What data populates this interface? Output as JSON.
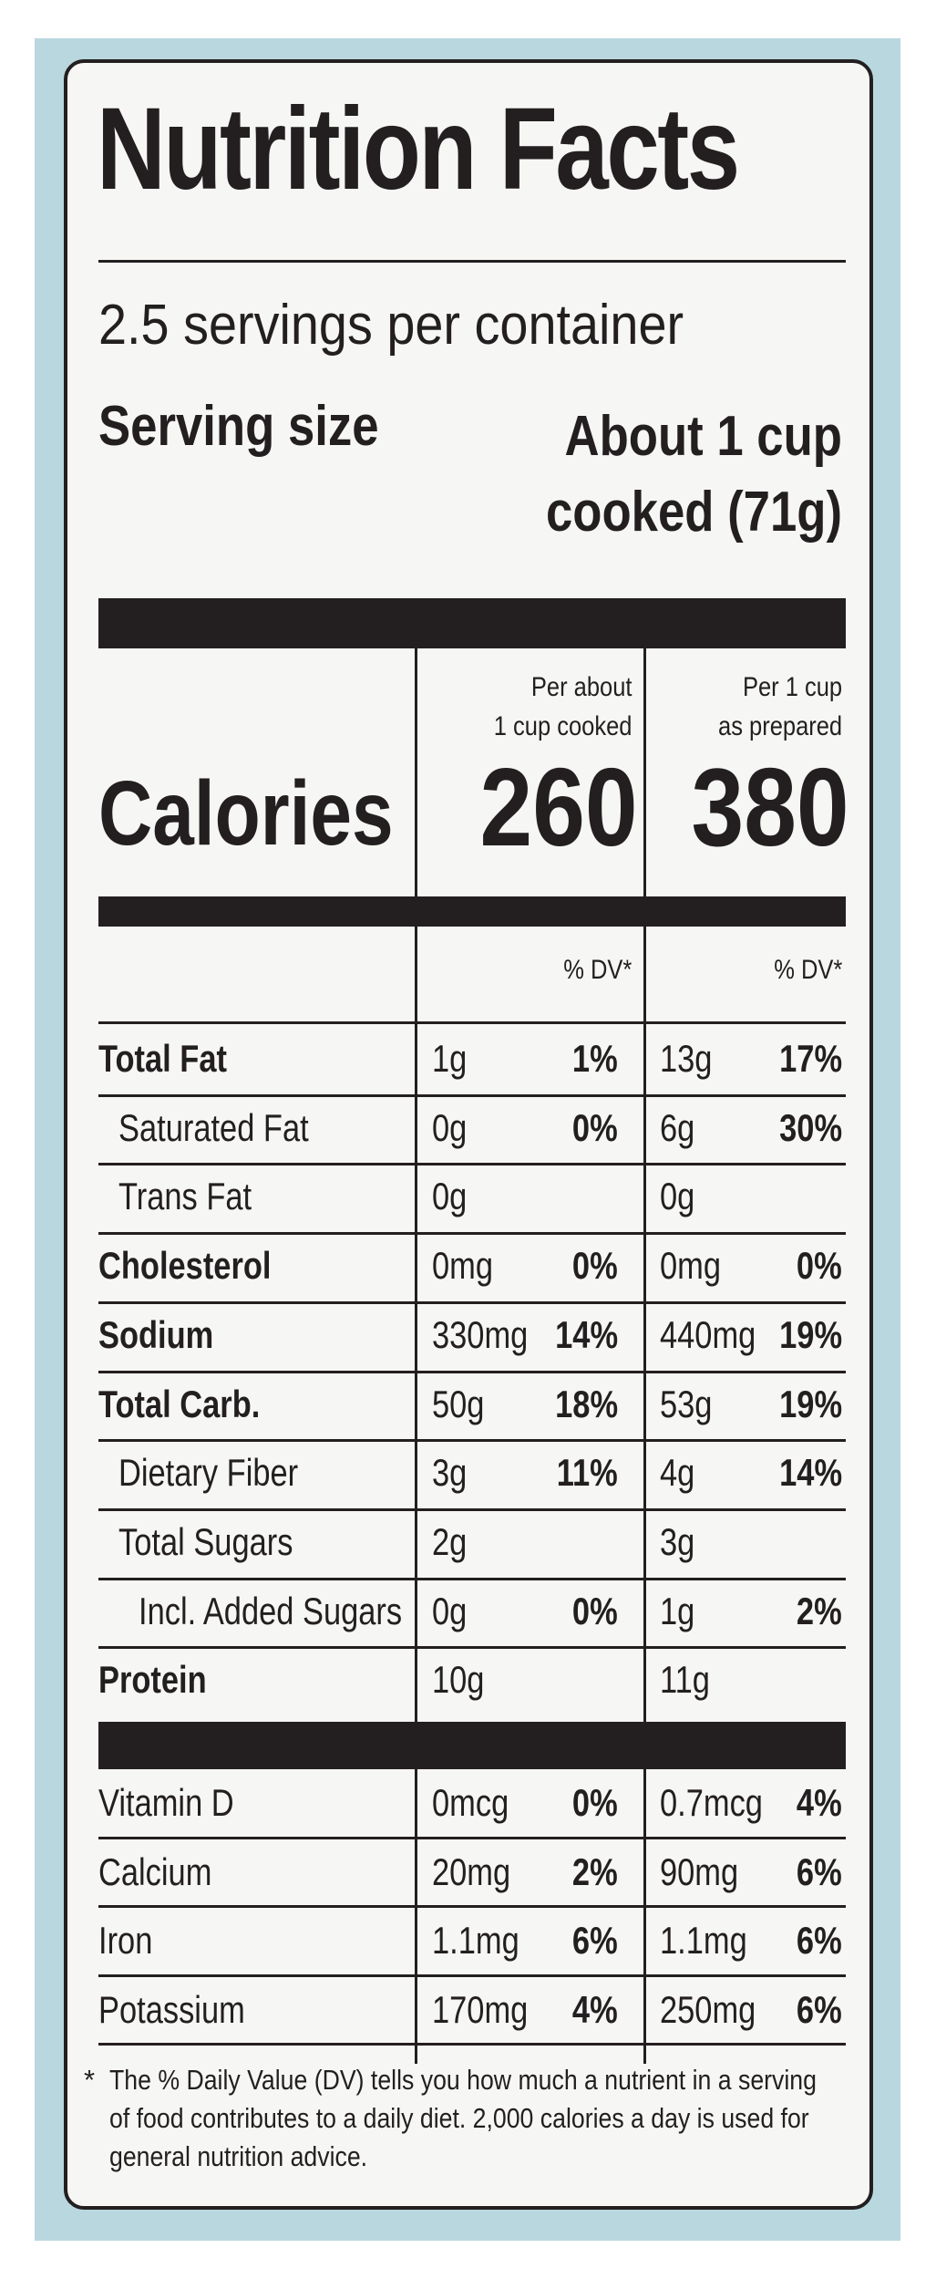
{
  "label": {
    "title": "Nutrition Facts",
    "servings_per_container": "2.5 servings per container",
    "serving_size_label": "Serving size",
    "serving_size_value_line1": "About 1 cup",
    "serving_size_value_line2": "cooked (71g)",
    "columns": [
      {
        "line1": "Per about",
        "line2": "1 cup cooked",
        "calories": "260",
        "dv_header": "% DV*"
      },
      {
        "line1": "Per 1 cup",
        "line2": "as prepared",
        "calories": "380",
        "dv_header": "% DV*"
      }
    ],
    "calories_label": "Calories",
    "nutrients": [
      {
        "name": "Total Fat",
        "bold": true,
        "indent": 0,
        "c1_amount": "1g",
        "c1_dv": "1%",
        "c2_amount": "13g",
        "c2_dv": "17%"
      },
      {
        "name": "Saturated Fat",
        "bold": false,
        "indent": 1,
        "c1_amount": "0g",
        "c1_dv": "0%",
        "c2_amount": "6g",
        "c2_dv": "30%"
      },
      {
        "name": "Trans Fat",
        "bold": false,
        "indent": 1,
        "c1_amount": "0g",
        "c1_dv": "",
        "c2_amount": "0g",
        "c2_dv": ""
      },
      {
        "name": "Cholesterol",
        "bold": true,
        "indent": 0,
        "c1_amount": "0mg",
        "c1_dv": "0%",
        "c2_amount": "0mg",
        "c2_dv": "0%"
      },
      {
        "name": "Sodium",
        "bold": true,
        "indent": 0,
        "c1_amount": "330mg",
        "c1_dv": "14%",
        "c2_amount": "440mg",
        "c2_dv": "19%"
      },
      {
        "name": "Total Carb.",
        "bold": true,
        "indent": 0,
        "c1_amount": "50g",
        "c1_dv": "18%",
        "c2_amount": "53g",
        "c2_dv": "19%"
      },
      {
        "name": "Dietary Fiber",
        "bold": false,
        "indent": 1,
        "c1_amount": "3g",
        "c1_dv": "11%",
        "c2_amount": "4g",
        "c2_dv": "14%"
      },
      {
        "name": "Total Sugars",
        "bold": false,
        "indent": 1,
        "c1_amount": "2g",
        "c1_dv": "",
        "c2_amount": "3g",
        "c2_dv": ""
      },
      {
        "name": "Incl. Added Sugars",
        "bold": false,
        "indent": 2,
        "c1_amount": "0g",
        "c1_dv": "0%",
        "c2_amount": "1g",
        "c2_dv": "2%"
      },
      {
        "name": "Protein",
        "bold": true,
        "indent": 0,
        "c1_amount": "10g",
        "c1_dv": "",
        "c2_amount": "11g",
        "c2_dv": ""
      }
    ],
    "vitamins": [
      {
        "name": "Vitamin D",
        "c1_amount": "0mcg",
        "c1_dv": "0%",
        "c2_amount": "0.7mcg",
        "c2_dv": "4%"
      },
      {
        "name": "Calcium",
        "c1_amount": "20mg",
        "c1_dv": "2%",
        "c2_amount": "90mg",
        "c2_dv": "6%"
      },
      {
        "name": "Iron",
        "c1_amount": "1.1mg",
        "c1_dv": "6%",
        "c2_amount": "1.1mg",
        "c2_dv": "6%"
      },
      {
        "name": "Potassium",
        "c1_amount": "170mg",
        "c1_dv": "4%",
        "c2_amount": "250mg",
        "c2_dv": "6%"
      }
    ],
    "footnote_star": "*",
    "footnote": "The % Daily Value (DV) tells you how much a nutrient in a serving of food contributes to a daily diet. 2,000 calories a day is used for general nutrition advice."
  },
  "colors": {
    "ink": "#231f20",
    "panel": "#f6f6f4",
    "backdrop": "#b9d7df"
  }
}
